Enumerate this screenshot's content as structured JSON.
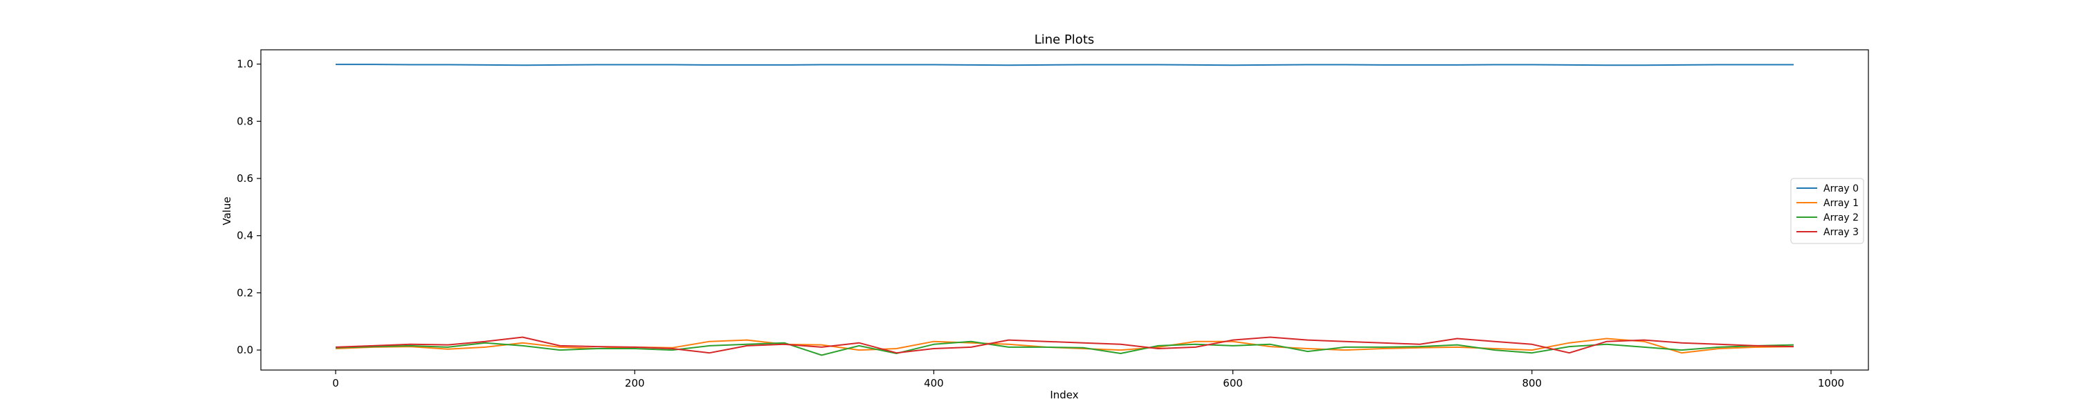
{
  "chart_data": {
    "type": "line",
    "title": "Line Plots",
    "xlabel": "Index",
    "ylabel": "Value",
    "xlim": [
      -50,
      1025
    ],
    "ylim": [
      -0.07,
      1.05
    ],
    "xticks": [
      0,
      200,
      400,
      600,
      800,
      1000
    ],
    "xtick_labels": [
      "0",
      "200",
      "400",
      "600",
      "800",
      "1000"
    ],
    "yticks": [
      0.0,
      0.2,
      0.4,
      0.6,
      0.8,
      1.0
    ],
    "ytick_labels": [
      "0.0",
      "0.2",
      "0.4",
      "0.6",
      "0.8",
      "1.0"
    ],
    "grid": false,
    "legend_position": "center-right",
    "x": [
      0,
      25,
      50,
      75,
      100,
      125,
      150,
      175,
      200,
      225,
      250,
      275,
      300,
      325,
      350,
      375,
      400,
      425,
      450,
      475,
      500,
      525,
      550,
      575,
      600,
      625,
      650,
      675,
      700,
      725,
      750,
      775,
      800,
      825,
      850,
      875,
      900,
      925,
      950,
      975
    ],
    "series": [
      {
        "name": "Array 0",
        "color": "#1f77b4",
        "values": [
          0.999,
          0.999,
          0.998,
          0.998,
          0.997,
          0.996,
          0.997,
          0.998,
          0.998,
          0.998,
          0.997,
          0.997,
          0.997,
          0.998,
          0.998,
          0.998,
          0.998,
          0.997,
          0.996,
          0.997,
          0.998,
          0.998,
          0.998,
          0.997,
          0.996,
          0.997,
          0.998,
          0.998,
          0.997,
          0.997,
          0.997,
          0.998,
          0.998,
          0.997,
          0.996,
          0.996,
          0.997,
          0.998,
          0.998,
          0.998
        ]
      },
      {
        "name": "Array 1",
        "color": "#ff7f0e",
        "values": [
          0.005,
          0.01,
          0.012,
          0.003,
          0.01,
          0.025,
          0.01,
          0.005,
          0.01,
          0.008,
          0.03,
          0.035,
          0.02,
          0.018,
          0.0,
          0.005,
          0.03,
          0.025,
          0.02,
          0.01,
          0.005,
          0.0,
          0.01,
          0.03,
          0.03,
          0.012,
          0.005,
          0.0,
          0.005,
          0.008,
          0.01,
          0.005,
          0.0,
          0.025,
          0.04,
          0.03,
          -0.01,
          0.005,
          0.01,
          0.012
        ]
      },
      {
        "name": "Array 2",
        "color": "#2ca02c",
        "values": [
          0.008,
          0.012,
          0.015,
          0.01,
          0.025,
          0.015,
          0.0,
          0.005,
          0.005,
          0.0,
          0.015,
          0.02,
          0.025,
          -0.018,
          0.015,
          -0.012,
          0.02,
          0.03,
          0.01,
          0.01,
          0.008,
          -0.012,
          0.015,
          0.02,
          0.015,
          0.02,
          -0.005,
          0.01,
          0.01,
          0.012,
          0.018,
          0.0,
          -0.01,
          0.012,
          0.02,
          0.01,
          0.0,
          0.01,
          0.015,
          0.018
        ]
      },
      {
        "name": "Array 3",
        "color": "#d62728",
        "values": [
          0.01,
          0.015,
          0.02,
          0.018,
          0.03,
          0.045,
          0.015,
          0.012,
          0.01,
          0.005,
          -0.01,
          0.015,
          0.02,
          0.01,
          0.025,
          -0.01,
          0.005,
          0.01,
          0.035,
          0.03,
          0.025,
          0.02,
          0.005,
          0.01,
          0.035,
          0.045,
          0.035,
          0.03,
          0.025,
          0.02,
          0.04,
          0.03,
          0.02,
          -0.01,
          0.03,
          0.035,
          0.025,
          0.02,
          0.015,
          0.012
        ]
      }
    ]
  }
}
